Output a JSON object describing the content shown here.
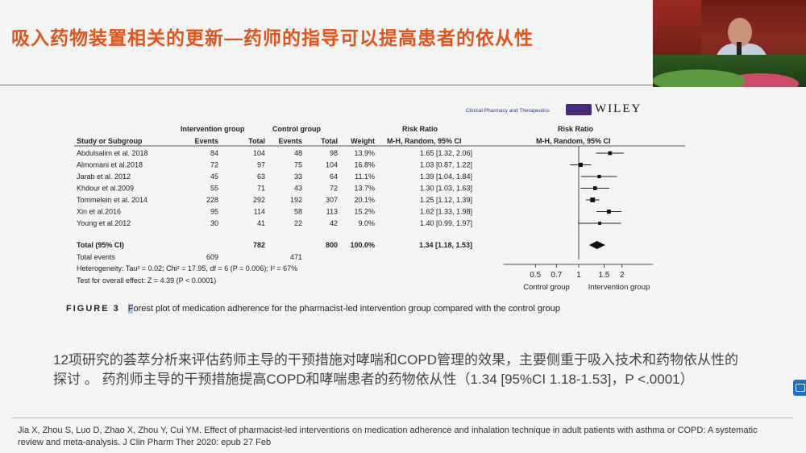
{
  "slide": {
    "title": "吸入药物装置相关的更新—药师的指导可以提高患者的依从性",
    "summary_text": "12项研究的荟萃分析来评估药师主导的干预措施对哮喘和COPD管理的效果，主要侧重于吸入技术和药物依从性的探讨 。 药剂师主导的干预措施提高COPD和哮喘患者的药物依从性（1.34 [95%CI 1.18-1.53]，P <.0001）",
    "reference": "Jia X, Zhou S, Luo D, Zhao X, Zhou Y, Cui YM. Effect of pharmacist-led interventions on medication adherence and inhalation technique in adult patients with asthma or COPD: A systematic review and meta-analysis. J Clin Pharm Ther 2020: epub 27 Feb"
  },
  "publisher": {
    "journal": "Clinical Pharmacy and Therapeutics",
    "name": "WILEY"
  },
  "figure": {
    "label": "FIGURE 3",
    "caption_first_letter": "F",
    "caption_rest": "orest plot of medication adherence for the pharmacist-led intervention group compared with the control group"
  },
  "chart_data": {
    "type": "forest",
    "headers": {
      "study": "Study or Subgroup",
      "intervention_group": "Intervention group",
      "control_group": "Control group",
      "events": "Events",
      "total": "Total",
      "weight": "Weight",
      "risk_ratio": "Risk Ratio",
      "method": "M-H, Random, 95% CI"
    },
    "studies": [
      {
        "study": "Abdulsalim et al. 2018",
        "int_events": "84",
        "int_total": "104",
        "ctl_events": "48",
        "ctl_total": "98",
        "weight": "13.9%",
        "rr_text": "1.65 [1.32, 2.06]",
        "rr": 1.65,
        "lo": 1.32,
        "hi": 2.06
      },
      {
        "study": "Almomani et al.2018",
        "int_events": "72",
        "int_total": "97",
        "ctl_events": "75",
        "ctl_total": "104",
        "weight": "16.8%",
        "rr_text": "1.03 [0.87, 1.22]",
        "rr": 1.03,
        "lo": 0.87,
        "hi": 1.22
      },
      {
        "study": "Jarab et al. 2012",
        "int_events": "45",
        "int_total": "63",
        "ctl_events": "33",
        "ctl_total": "64",
        "weight": "11.1%",
        "rr_text": "1.39 [1.04, 1.84]",
        "rr": 1.39,
        "lo": 1.04,
        "hi": 1.84
      },
      {
        "study": "Khdour et al.2009",
        "int_events": "55",
        "int_total": "71",
        "ctl_events": "43",
        "ctl_total": "72",
        "weight": "13.7%",
        "rr_text": "1.30 [1.03, 1.63]",
        "rr": 1.3,
        "lo": 1.03,
        "hi": 1.63
      },
      {
        "study": "Tommelein et al. 2014",
        "int_events": "228",
        "int_total": "292",
        "ctl_events": "192",
        "ctl_total": "307",
        "weight": "20.1%",
        "rr_text": "1.25 [1.12, 1.39]",
        "rr": 1.25,
        "lo": 1.12,
        "hi": 1.39
      },
      {
        "study": "Xin et al.2016",
        "int_events": "95",
        "int_total": "114",
        "ctl_events": "58",
        "ctl_total": "113",
        "weight": "15.2%",
        "rr_text": "1.62 [1.33, 1.98]",
        "rr": 1.62,
        "lo": 1.33,
        "hi": 1.98
      },
      {
        "study": "Young et al.2012",
        "int_events": "30",
        "int_total": "41",
        "ctl_events": "22",
        "ctl_total": "42",
        "weight": "9.0%",
        "rr_text": "1.40 [0.99, 1.97]",
        "rr": 1.4,
        "lo": 0.99,
        "hi": 1.97
      }
    ],
    "total": {
      "label": "Total (95% CI)",
      "int_total": "782",
      "ctl_total": "800",
      "weight": "100.0%",
      "rr_text": "1.34 [1.18, 1.53]",
      "rr": 1.34,
      "lo": 1.18,
      "hi": 1.53
    },
    "total_events": {
      "label": "Total events",
      "int_events": "609",
      "ctl_events": "471"
    },
    "heterogeneity": "Heterogeneity: Tau² = 0.02; Chi² = 17.95, df = 6 (P = 0.006); I² = 67%",
    "overall_effect": "Test for overall effect: Z = 4.39 (P < 0.0001)",
    "x_axis": {
      "scale": "log",
      "ticks": [
        0.5,
        0.7,
        1,
        1.5,
        2
      ],
      "tick_labels": [
        "0.5",
        "0.7",
        "1",
        "1.5",
        "2"
      ],
      "xlim": [
        0.3,
        3.3
      ]
    },
    "favours_left": "Control group",
    "favours_right": "Intervention group"
  }
}
